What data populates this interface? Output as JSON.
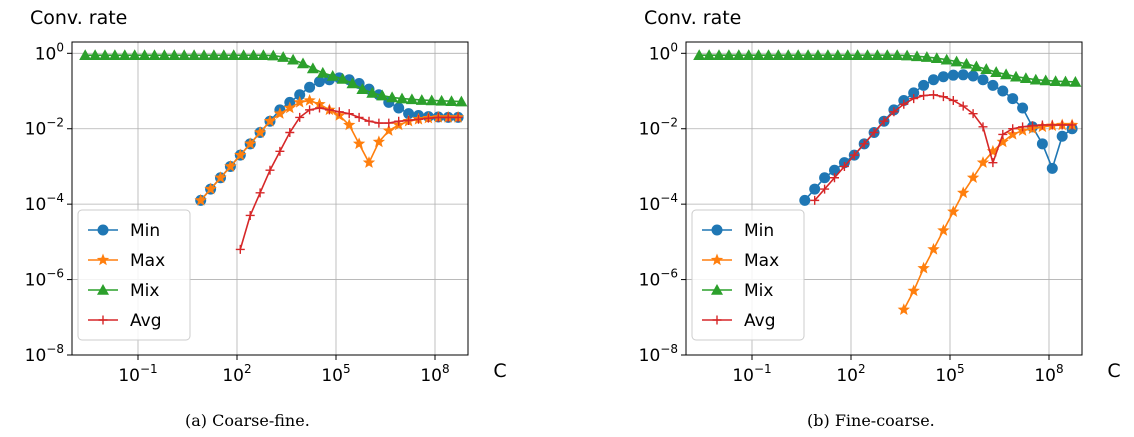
{
  "chart_data": [
    {
      "type": "line",
      "title": "",
      "caption": "(a)  Coarse-fine.",
      "ylabel": "Conv. rate",
      "xlabel": "C",
      "xscale": "log",
      "yscale": "log",
      "xlim": [
        0.001,
        1000000000
      ],
      "ylim": [
        1e-08,
        2
      ],
      "xticks": [
        {
          "exp": "−1",
          "value": 0.1
        },
        {
          "exp": "2",
          "value": 100
        },
        {
          "exp": "5",
          "value": 100000
        },
        {
          "exp": "8",
          "value": 100000000
        }
      ],
      "yticks": [
        {
          "exp": "0",
          "value": 1
        },
        {
          "exp": "−2",
          "value": 0.01
        },
        {
          "exp": "−4",
          "value": 0.0001
        },
        {
          "exp": "−6",
          "value": 1e-06
        },
        {
          "exp": "−8",
          "value": 1e-08
        }
      ],
      "grid": true,
      "legend_position": "lower-left",
      "series": [
        {
          "name": "Min",
          "color": "#1f77b4",
          "marker": "circle",
          "x_log10": [
            0.9,
            1.2,
            1.5,
            1.8,
            2.1,
            2.4,
            2.7,
            3.0,
            3.3,
            3.6,
            3.9,
            4.2,
            4.5,
            4.8,
            5.1,
            5.4,
            5.7,
            6.0,
            6.3,
            6.6,
            6.9,
            7.2,
            7.5,
            7.8,
            8.1,
            8.4,
            8.7
          ],
          "y_log10": [
            -3.9,
            -3.6,
            -3.3,
            -3.0,
            -2.7,
            -2.4,
            -2.1,
            -1.8,
            -1.5,
            -1.3,
            -1.1,
            -0.9,
            -0.75,
            -0.7,
            -0.65,
            -0.7,
            -0.8,
            -0.95,
            -1.1,
            -1.3,
            -1.45,
            -1.6,
            -1.65,
            -1.68,
            -1.69,
            -1.7,
            -1.7
          ]
        },
        {
          "name": "Max",
          "color": "#ff7f0e",
          "marker": "star",
          "x_log10": [
            0.9,
            1.2,
            1.5,
            1.8,
            2.1,
            2.4,
            2.7,
            3.0,
            3.3,
            3.6,
            3.9,
            4.2,
            4.5,
            4.8,
            5.1,
            5.4,
            5.7,
            6.0,
            6.3,
            6.6,
            6.9,
            7.2,
            7.5,
            7.8,
            8.1,
            8.4,
            8.7
          ],
          "y_log10": [
            -3.9,
            -3.6,
            -3.3,
            -3.0,
            -2.7,
            -2.4,
            -2.1,
            -1.8,
            -1.6,
            -1.45,
            -1.3,
            -1.25,
            -1.35,
            -1.5,
            -1.65,
            -1.9,
            -2.4,
            -2.9,
            -2.35,
            -2.05,
            -1.9,
            -1.8,
            -1.75,
            -1.72,
            -1.7,
            -1.7,
            -1.7
          ]
        },
        {
          "name": "Mix",
          "color": "#2ca02c",
          "marker": "triangle",
          "x_log10": [
            -2.6,
            -2.3,
            -2.0,
            -1.7,
            -1.4,
            -1.1,
            -0.8,
            -0.5,
            -0.2,
            0.1,
            0.4,
            0.7,
            1.0,
            1.3,
            1.6,
            1.9,
            2.2,
            2.5,
            2.8,
            3.1,
            3.4,
            3.7,
            4.0,
            4.3,
            4.6,
            4.9,
            5.2,
            5.5,
            5.8,
            6.1,
            6.4,
            6.7,
            7.0,
            7.3,
            7.6,
            7.9,
            8.2,
            8.5,
            8.8
          ],
          "y_log10": [
            -0.05,
            -0.05,
            -0.05,
            -0.05,
            -0.05,
            -0.05,
            -0.05,
            -0.05,
            -0.05,
            -0.05,
            -0.05,
            -0.05,
            -0.05,
            -0.05,
            -0.05,
            -0.05,
            -0.05,
            -0.05,
            -0.05,
            -0.06,
            -0.1,
            -0.17,
            -0.27,
            -0.4,
            -0.52,
            -0.6,
            -0.68,
            -0.8,
            -0.95,
            -1.05,
            -1.12,
            -1.17,
            -1.2,
            -1.22,
            -1.24,
            -1.25,
            -1.26,
            -1.27,
            -1.28
          ]
        },
        {
          "name": "Avg",
          "color": "#d62728",
          "marker": "plus",
          "x_log10": [
            2.1,
            2.4,
            2.7,
            3.0,
            3.3,
            3.6,
            3.9,
            4.2,
            4.5,
            4.8,
            5.1,
            5.4,
            5.7,
            6.0,
            6.3,
            6.6,
            6.9,
            7.2,
            7.5,
            7.8,
            8.1,
            8.4,
            8.7
          ],
          "y_log10": [
            -5.2,
            -4.3,
            -3.7,
            -3.1,
            -2.6,
            -2.1,
            -1.7,
            -1.5,
            -1.45,
            -1.5,
            -1.55,
            -1.6,
            -1.7,
            -1.8,
            -1.85,
            -1.85,
            -1.8,
            -1.78,
            -1.75,
            -1.72,
            -1.7,
            -1.7,
            -1.7
          ]
        }
      ]
    },
    {
      "type": "line",
      "title": "",
      "caption": "(b)  Fine-coarse.",
      "ylabel": "Conv. rate",
      "xlabel": "C",
      "xscale": "log",
      "yscale": "log",
      "xlim": [
        0.001,
        1000000000
      ],
      "ylim": [
        1e-08,
        2
      ],
      "xticks": [
        {
          "exp": "−1",
          "value": 0.1
        },
        {
          "exp": "2",
          "value": 100
        },
        {
          "exp": "5",
          "value": 100000
        },
        {
          "exp": "8",
          "value": 100000000
        }
      ],
      "yticks": [
        {
          "exp": "0",
          "value": 1
        },
        {
          "exp": "−2",
          "value": 0.01
        },
        {
          "exp": "−4",
          "value": 0.0001
        },
        {
          "exp": "−6",
          "value": 1e-06
        },
        {
          "exp": "−8",
          "value": 1e-08
        }
      ],
      "grid": true,
      "legend_position": "lower-left",
      "series": [
        {
          "name": "Min",
          "color": "#1f77b4",
          "marker": "circle",
          "x_log10": [
            0.6,
            0.9,
            1.2,
            1.5,
            1.8,
            2.1,
            2.4,
            2.7,
            3.0,
            3.3,
            3.6,
            3.9,
            4.2,
            4.5,
            4.8,
            5.1,
            5.4,
            5.7,
            6.0,
            6.3,
            6.6,
            6.9,
            7.2,
            7.5,
            7.8,
            8.1,
            8.4,
            8.7
          ],
          "y_log10": [
            -3.9,
            -3.6,
            -3.3,
            -3.1,
            -2.9,
            -2.7,
            -2.4,
            -2.1,
            -1.8,
            -1.5,
            -1.25,
            -1.05,
            -0.85,
            -0.7,
            -0.62,
            -0.58,
            -0.57,
            -0.6,
            -0.7,
            -0.85,
            -1.0,
            -1.2,
            -1.45,
            -1.95,
            -2.4,
            -3.05,
            -2.2,
            -2.0
          ]
        },
        {
          "name": "Max",
          "color": "#ff7f0e",
          "marker": "star",
          "x_log10": [
            3.6,
            3.9,
            4.2,
            4.5,
            4.8,
            5.1,
            5.4,
            5.7,
            6.0,
            6.3,
            6.6,
            6.9,
            7.2,
            7.5,
            7.8,
            8.1,
            8.4,
            8.7
          ],
          "y_log10": [
            -6.8,
            -6.3,
            -5.7,
            -5.2,
            -4.7,
            -4.2,
            -3.7,
            -3.3,
            -2.9,
            -2.6,
            -2.35,
            -2.15,
            -2.05,
            -2.0,
            -1.95,
            -1.92,
            -1.9,
            -1.9
          ]
        },
        {
          "name": "Mix",
          "color": "#2ca02c",
          "marker": "triangle",
          "x_log10": [
            -2.6,
            -2.3,
            -2.0,
            -1.7,
            -1.4,
            -1.1,
            -0.8,
            -0.5,
            -0.2,
            0.1,
            0.4,
            0.7,
            1.0,
            1.3,
            1.6,
            1.9,
            2.2,
            2.5,
            2.8,
            3.1,
            3.4,
            3.7,
            4.0,
            4.3,
            4.6,
            4.9,
            5.2,
            5.5,
            5.8,
            6.1,
            6.4,
            6.7,
            7.0,
            7.3,
            7.6,
            7.9,
            8.2,
            8.5,
            8.8
          ],
          "y_log10": [
            -0.05,
            -0.05,
            -0.05,
            -0.05,
            -0.05,
            -0.05,
            -0.05,
            -0.05,
            -0.05,
            -0.05,
            -0.05,
            -0.05,
            -0.05,
            -0.05,
            -0.05,
            -0.05,
            -0.05,
            -0.05,
            -0.05,
            -0.05,
            -0.05,
            -0.06,
            -0.08,
            -0.1,
            -0.13,
            -0.17,
            -0.22,
            -0.28,
            -0.35,
            -0.42,
            -0.5,
            -0.56,
            -0.62,
            -0.66,
            -0.7,
            -0.72,
            -0.74,
            -0.75,
            -0.76
          ]
        },
        {
          "name": "Avg",
          "color": "#d62728",
          "marker": "plus",
          "x_log10": [
            0.9,
            1.2,
            1.5,
            1.8,
            2.1,
            2.4,
            2.7,
            3.0,
            3.3,
            3.6,
            3.9,
            4.2,
            4.5,
            4.8,
            5.1,
            5.4,
            5.7,
            6.0,
            6.3,
            6.6,
            6.9,
            7.2,
            7.5,
            7.8,
            8.1,
            8.4,
            8.7
          ],
          "y_log10": [
            -3.9,
            -3.6,
            -3.3,
            -3.0,
            -2.7,
            -2.4,
            -2.1,
            -1.8,
            -1.55,
            -1.35,
            -1.2,
            -1.12,
            -1.1,
            -1.15,
            -1.25,
            -1.4,
            -1.6,
            -1.95,
            -2.9,
            -2.15,
            -2.0,
            -1.95,
            -1.92,
            -1.9,
            -1.9,
            -1.9,
            -1.9
          ]
        }
      ]
    }
  ]
}
